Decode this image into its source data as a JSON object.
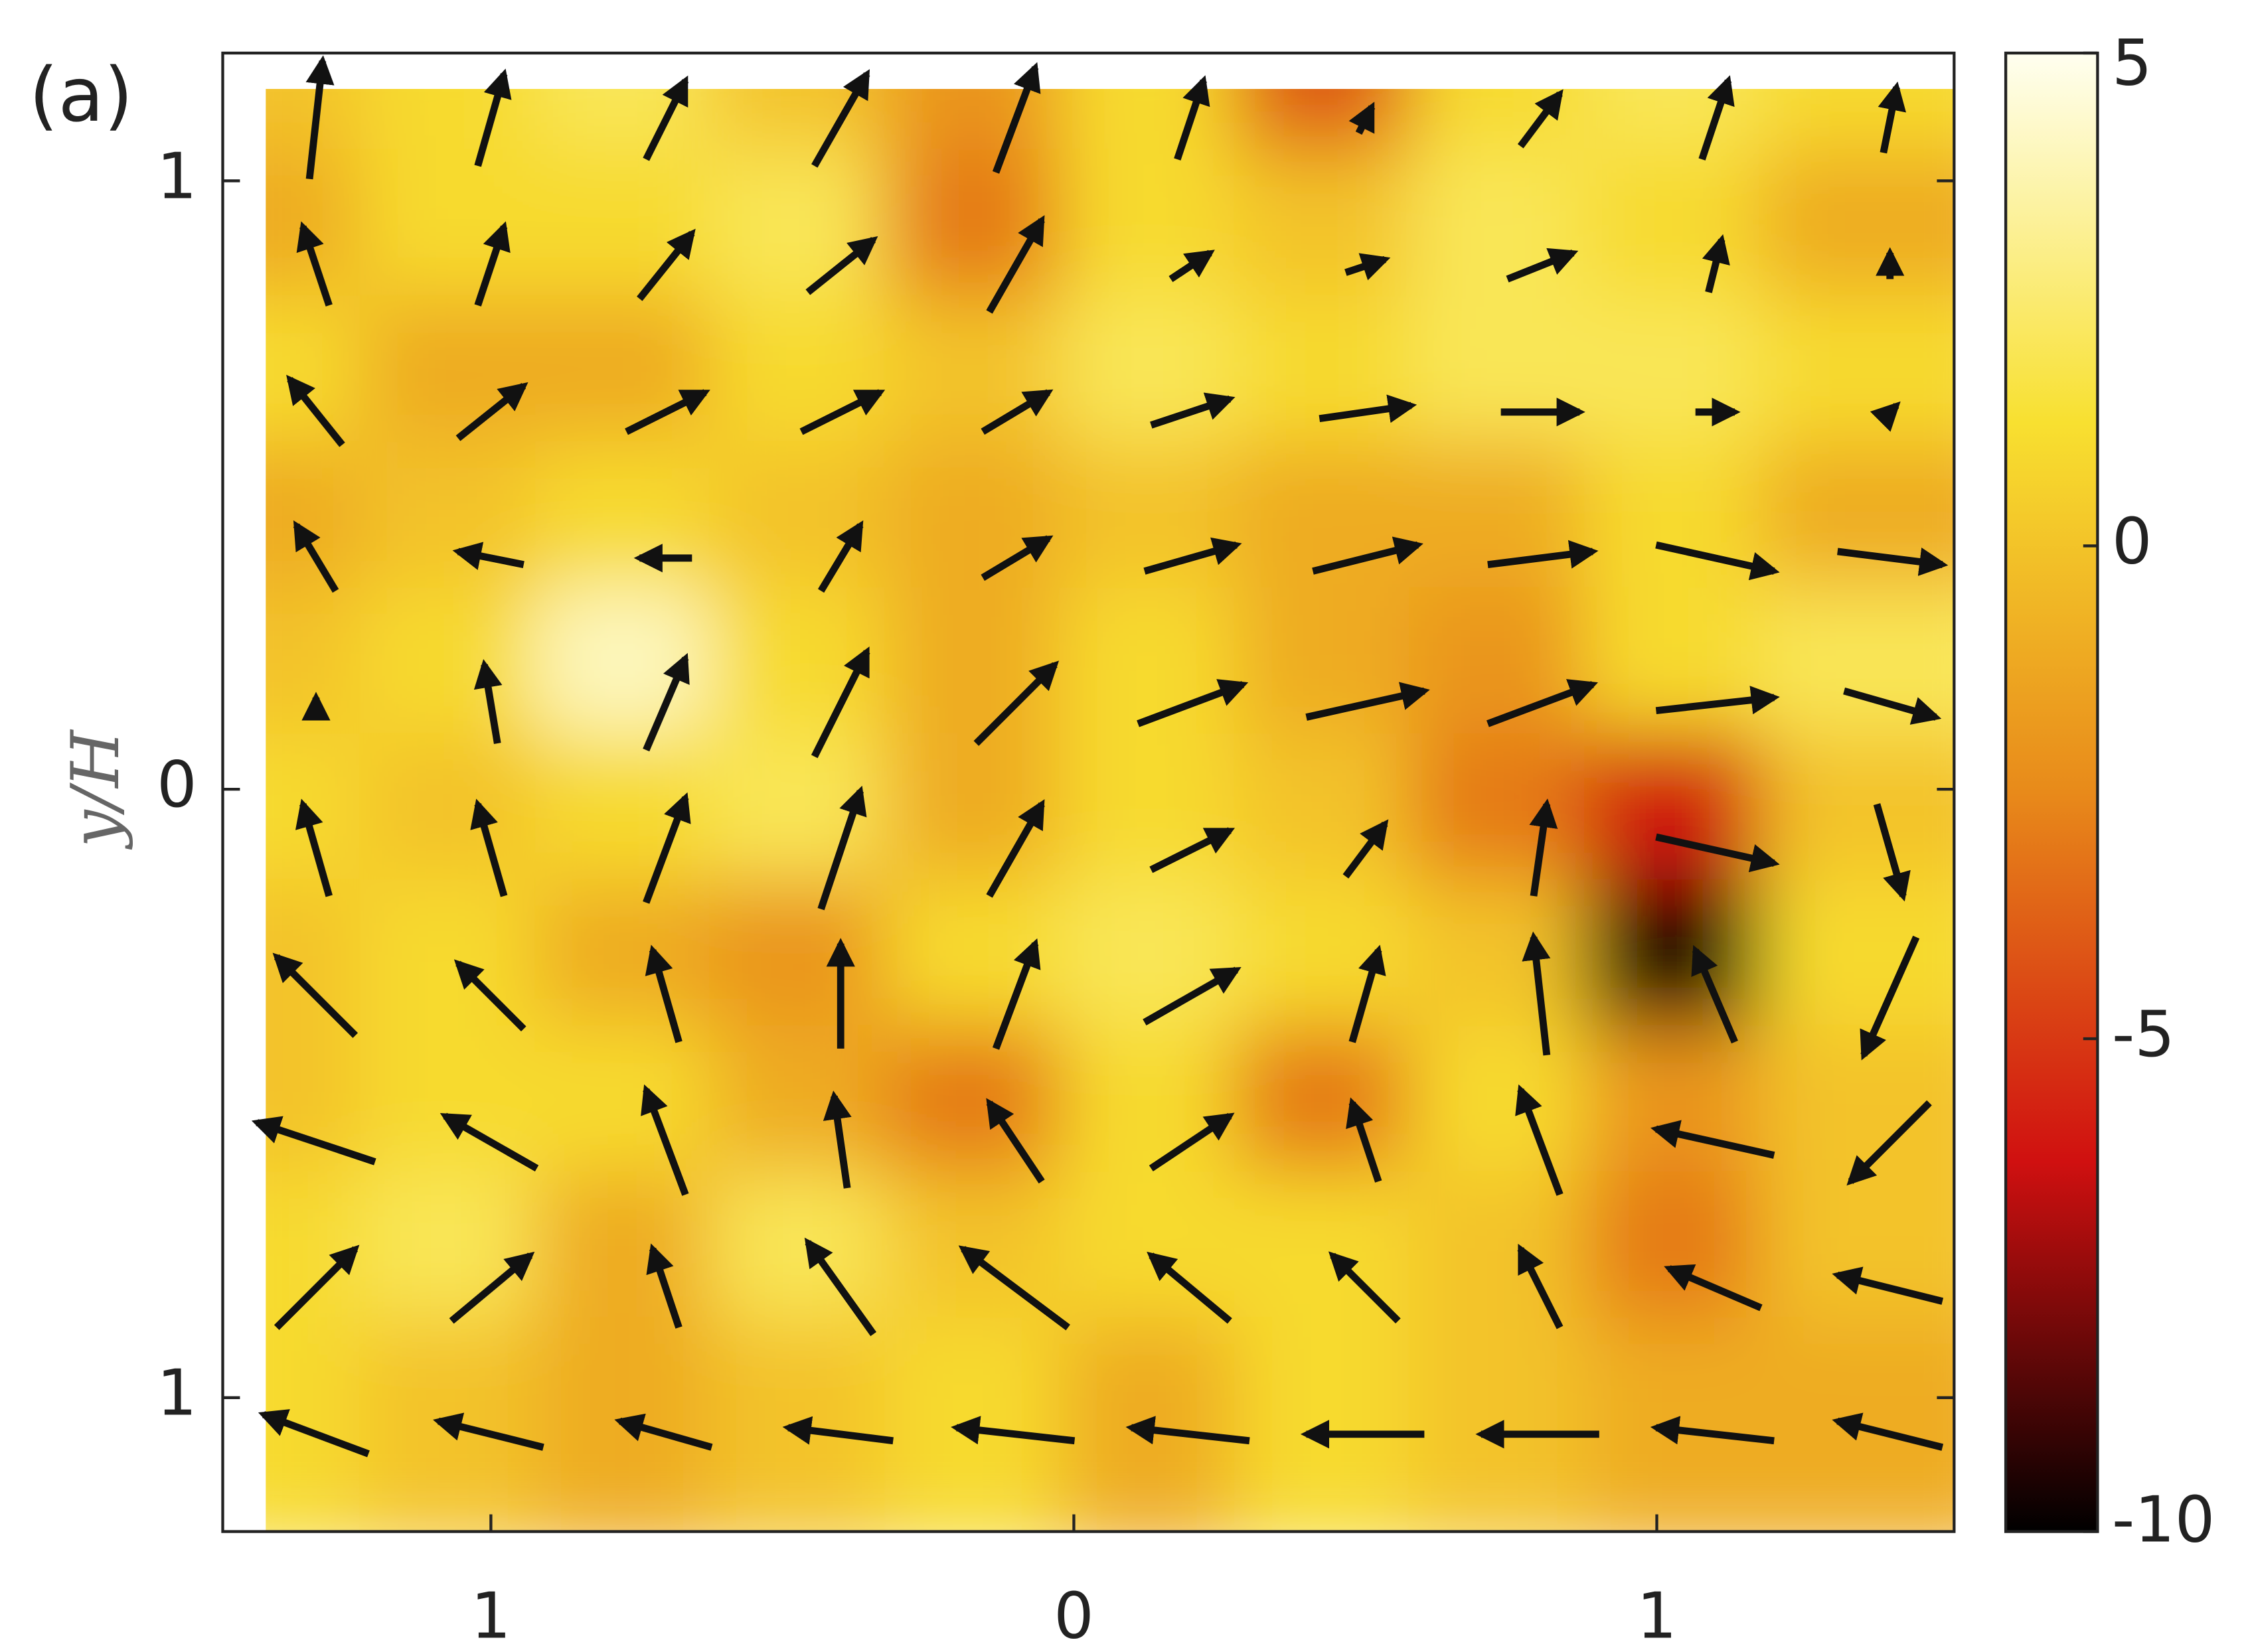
{
  "chart_data": {
    "type": "quiver-heatmap",
    "panel_label": "(a)",
    "y_label": "y/H",
    "xlim": [
      -1.46,
      1.51
    ],
    "ylim": [
      -1.22,
      1.21
    ],
    "xticks": [
      {
        "value": -1,
        "label": "1"
      },
      0,
      1
    ],
    "yticks": [
      {
        "value": -1,
        "label": "1"
      },
      0,
      1
    ],
    "x": [
      -1.3,
      -1.0,
      -0.7,
      -0.4,
      -0.1,
      0.2,
      0.5,
      0.8,
      1.1,
      1.4
    ],
    "y": [
      1.1,
      0.86,
      0.62,
      0.38,
      0.14,
      -0.1,
      -0.34,
      -0.58,
      -0.82,
      -1.06
    ],
    "z": [
      [
        0,
        1,
        2,
        0,
        -2,
        1,
        -4,
        1,
        2,
        1
      ],
      [
        -1,
        1,
        1,
        2,
        -3,
        1,
        0,
        2,
        1,
        -1
      ],
      [
        1,
        -1,
        -1,
        1,
        0,
        2,
        1,
        2,
        2,
        1
      ],
      [
        -1,
        0,
        1,
        0,
        -1,
        0,
        -1,
        -1,
        1,
        -1
      ],
      [
        0,
        1,
        4,
        1,
        -1,
        1,
        -1,
        -2,
        1,
        2
      ],
      [
        1,
        0,
        1,
        2,
        -1,
        1,
        0,
        -3,
        -6,
        0
      ],
      [
        0,
        1,
        -1,
        -2,
        1,
        2,
        1,
        0,
        -10,
        1
      ],
      [
        0,
        1,
        1,
        -1,
        -3,
        1,
        -3,
        1,
        -2,
        0
      ],
      [
        1,
        2,
        -1,
        2,
        0,
        1,
        1,
        0,
        -3,
        0
      ],
      [
        1,
        0,
        -1,
        0,
        1,
        -1,
        1,
        0,
        -1,
        -1
      ]
    ],
    "u": [
      [
        0.1,
        0.2,
        0.3,
        0.4,
        0.3,
        0.2,
        0.1,
        0.3,
        0.2,
        0.1
      ],
      [
        -0.2,
        0.2,
        0.4,
        0.5,
        0.4,
        0.3,
        0.3,
        0.5,
        0.1,
        0
      ],
      [
        -0.4,
        0.5,
        0.6,
        0.6,
        0.5,
        0.6,
        0.7,
        0.6,
        0.3,
        0.1
      ],
      [
        -0.3,
        -0.5,
        -0.4,
        0.3,
        0.5,
        0.7,
        0.8,
        0.8,
        0.9,
        0.8
      ],
      [
        0,
        -0.1,
        0.3,
        0.4,
        0.6,
        0.8,
        0.9,
        0.8,
        0.9,
        0.7
      ],
      [
        -0.2,
        -0.2,
        0.3,
        0.3,
        0.4,
        0.6,
        0.3,
        0.1,
        0.9,
        0.2
      ],
      [
        -0.6,
        -0.5,
        -0.2,
        0,
        0.3,
        0.7,
        0.2,
        -0.1,
        -0.3,
        -0.4
      ],
      [
        -0.9,
        -0.7,
        -0.3,
        -0.1,
        -0.4,
        0.6,
        -0.2,
        -0.3,
        -0.9,
        -0.6
      ],
      [
        0.6,
        0.6,
        -0.2,
        -0.5,
        -0.8,
        -0.6,
        -0.5,
        -0.3,
        -0.7,
        -0.8
      ],
      [
        -0.8,
        -0.8,
        -0.7,
        -0.8,
        -0.9,
        -0.9,
        -0.9,
        -0.9,
        -0.9,
        -0.8
      ]
    ],
    "v": [
      [
        0.9,
        0.7,
        0.6,
        0.7,
        0.8,
        0.6,
        0.2,
        0.4,
        0.6,
        0.5
      ],
      [
        0.6,
        0.6,
        0.5,
        0.4,
        0.7,
        0.2,
        0.1,
        0.2,
        0.4,
        0.2
      ],
      [
        0.5,
        0.4,
        0.3,
        0.3,
        0.3,
        0.2,
        0.1,
        0,
        0,
        0.1
      ],
      [
        0.5,
        0.1,
        0,
        0.5,
        0.3,
        0.2,
        0.2,
        0.1,
        -0.2,
        -0.1
      ],
      [
        0.1,
        0.6,
        0.7,
        0.8,
        0.6,
        0.3,
        0.2,
        0.3,
        0.1,
        -0.2
      ],
      [
        0.7,
        0.7,
        0.8,
        0.9,
        0.7,
        0.3,
        0.4,
        0.7,
        -0.2,
        -0.7
      ],
      [
        0.6,
        0.5,
        0.7,
        0.8,
        0.8,
        0.4,
        0.7,
        0.9,
        0.7,
        -0.9
      ],
      [
        0.3,
        0.4,
        0.8,
        0.7,
        0.6,
        0.4,
        0.6,
        0.8,
        0.2,
        -0.6
      ],
      [
        0.6,
        0.5,
        0.6,
        0.7,
        0.6,
        0.5,
        0.5,
        0.6,
        0.3,
        0.2
      ],
      [
        0.3,
        0.2,
        0.2,
        0.1,
        0.1,
        0.1,
        0,
        0,
        0.1,
        0.2
      ]
    ],
    "colormap": [
      "#000000",
      "#d01010",
      "#e88a1a",
      "#f8e030",
      "#fffff0"
    ],
    "arrow_color": "#111111",
    "colorbar": {
      "lim": [
        -10,
        5
      ],
      "ticks": [
        5,
        0,
        -5,
        -10
      ]
    }
  }
}
